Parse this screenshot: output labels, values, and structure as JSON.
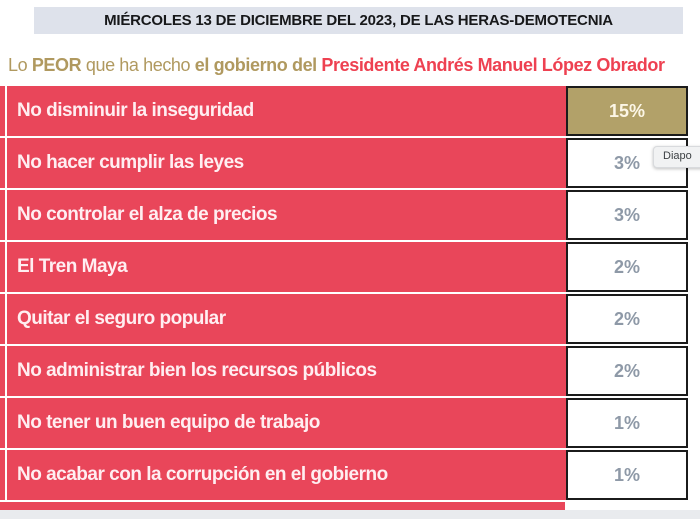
{
  "banner": {
    "title": "MIÉRCOLES 13 DE DICIEMBRE DEL 2023, DE LAS HERAS-DEMOTECNIA"
  },
  "subtitle": {
    "segments": [
      {
        "text": "Lo ",
        "style": "tan"
      },
      {
        "text": "PEOR",
        "style": "tan-bold"
      },
      {
        "text": " que ha hecho ",
        "style": "tan"
      },
      {
        "text": "el gobierno del ",
        "style": "tan-bold"
      },
      {
        "text": "Presidente Andrés Manuel López Obrador",
        "style": "red-bold"
      }
    ]
  },
  "table": {
    "rows": [
      {
        "label": "No disminuir la inseguridad",
        "value_display": "15%",
        "highlight": true
      },
      {
        "label": "No hacer cumplir las leyes",
        "value_display": "3%",
        "highlight": false
      },
      {
        "label": "No controlar el alza de precios",
        "value_display": "3%",
        "highlight": false
      },
      {
        "label": "El Tren Maya",
        "value_display": "2%",
        "highlight": false
      },
      {
        "label": "Quitar el seguro popular",
        "value_display": "2%",
        "highlight": false
      },
      {
        "label": "No administrar bien los recursos públicos",
        "value_display": "2%",
        "highlight": false
      },
      {
        "label": "No tener un buen equipo de trabajo",
        "value_display": "1%",
        "highlight": false
      },
      {
        "label": "No acabar con la corrupción en el gobierno",
        "value_display": "1%",
        "highlight": false
      }
    ]
  },
  "tooltip": {
    "text": "Diapo"
  },
  "colors": {
    "row_red": "#e9465a",
    "highlight_gold": "#b2a169",
    "subtitle_tan": "#b0995f",
    "subtitle_red": "#ee4151",
    "banner_bg": "#dee2eb",
    "value_text_gray": "#8e99a7",
    "cell_border": "#1b1b1b"
  },
  "chart_data": {
    "type": "table",
    "title": "Lo PEOR que ha hecho el gobierno del Presidente Andrés Manuel López Obrador",
    "subtitle": "MIÉRCOLES 13 DE DICIEMBRE DEL 2023, DE LAS HERAS-DEMOTECNIA",
    "categories": [
      "No disminuir la inseguridad",
      "No hacer cumplir las leyes",
      "No controlar el alza de precios",
      "El Tren Maya",
      "Quitar el seguro popular",
      "No administrar bien los recursos públicos",
      "No tener un buen equipo de trabajo",
      "No acabar con la corrupción en el gobierno"
    ],
    "values": [
      15,
      3,
      3,
      2,
      2,
      2,
      1,
      1
    ],
    "unit": "%",
    "highlighted_category": "No disminuir la inseguridad",
    "layout": "single-column table, red category cells on left, bordered percentage cells on right, top answer highlighted in gold"
  }
}
